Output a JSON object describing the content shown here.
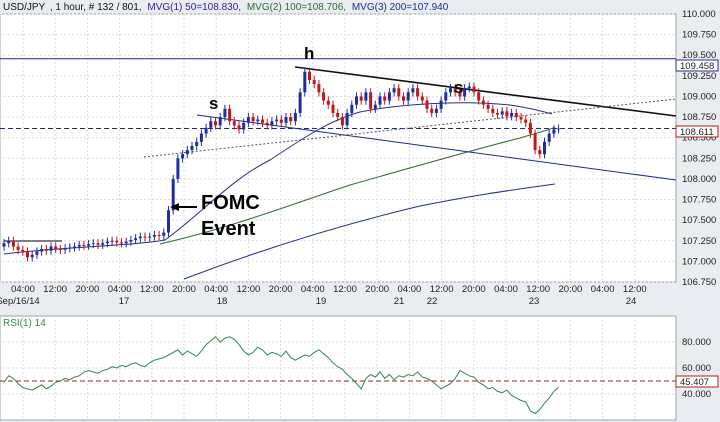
{
  "header": {
    "symbol": "USD/JPY",
    "timeframe": ", 1 hour, # 132 / 801,",
    "ma1_label": "MVG(1) 50=108.830,",
    "ma2_label": "MVG(2) 100=108.706,",
    "ma3_label": "MVG(3) 200=107.940",
    "rsi_label": "RSI(1) 14=45.407"
  },
  "colors": {
    "ma1": "#2a2a8c",
    "ma2": "#2f6b2f",
    "ma3": "#1f2f8a",
    "up_candle": "#1f2f9a",
    "down_candle": "#c01818",
    "price_line": "#1a2a8a",
    "rsi_line": "#2d8a4e",
    "rsi_mid": "#a02020"
  },
  "chart_data": [
    {
      "type": "candlestick",
      "panel": "price",
      "symbol": "USD/JPY",
      "interval": "1 hour",
      "ylim": [
        106.75,
        110.0
      ],
      "y_ticks": [
        "110.000",
        "109.750",
        "109.500",
        "109.250",
        "109.000",
        "108.750",
        "108.500",
        "108.250",
        "108.000",
        "107.750",
        "107.500",
        "107.250",
        "107.000",
        "106.750"
      ],
      "x_ticks": [
        "04:00",
        "12:00",
        "20:00",
        "04:00",
        "12:00",
        "20:00",
        "04:00",
        "12:00",
        "20:00",
        "04:00",
        "12:00",
        "20:00",
        "04:00",
        "12:00",
        "20:00",
        "04:00",
        "12:00",
        "20:00",
        "04:00",
        "12:00"
      ],
      "date_labels": [
        "Sep/16/14",
        "17",
        "18",
        "19",
        "21",
        "22",
        "23",
        "24"
      ],
      "current_price": 108.611,
      "current_price_label": "108.611",
      "resistance_level": 109.458,
      "resistance_label": "109.458",
      "moving_averages": [
        {
          "name": "MVG(1) 50",
          "value": 108.83
        },
        {
          "name": "MVG(2) 100",
          "value": 108.706
        },
        {
          "name": "MVG(3) 200",
          "value": 107.94
        }
      ],
      "annotations": [
        "h",
        "s",
        "s",
        "FOMC",
        "Event"
      ],
      "closes": [
        107.22,
        107.25,
        107.18,
        107.14,
        107.12,
        107.05,
        107.08,
        107.12,
        107.15,
        107.13,
        107.18,
        107.15,
        107.14,
        107.16,
        107.17,
        107.18,
        107.2,
        107.19,
        107.21,
        107.22,
        107.2,
        107.22,
        107.24,
        107.25,
        107.23,
        107.22,
        107.24,
        107.26,
        107.28,
        107.3,
        107.29,
        107.3,
        107.32,
        107.31,
        107.35,
        107.62,
        108.0,
        108.25,
        108.3,
        108.35,
        108.4,
        108.45,
        108.55,
        108.62,
        108.7,
        108.65,
        108.75,
        108.85,
        108.7,
        108.65,
        108.6,
        108.68,
        108.75,
        108.7,
        108.72,
        108.68,
        108.65,
        108.7,
        108.72,
        108.68,
        108.75,
        108.7,
        108.8,
        109.05,
        109.3,
        109.2,
        109.15,
        109.05,
        108.95,
        108.9,
        108.8,
        108.75,
        108.65,
        108.8,
        108.9,
        109.0,
        108.95,
        109.05,
        108.85,
        108.9,
        109.0,
        108.95,
        109.05,
        109.1,
        109.0,
        108.95,
        109.05,
        109.1,
        109.0,
        108.95,
        108.85,
        108.8,
        108.85,
        108.95,
        109.05,
        109.1,
        109.05,
        109.0,
        109.1,
        109.12,
        109.05,
        108.95,
        108.9,
        108.85,
        108.8,
        108.78,
        108.82,
        108.76,
        108.8,
        108.75,
        108.72,
        108.68,
        108.55,
        108.35,
        108.3,
        108.45,
        108.55,
        108.6,
        108.611
      ],
      "rsi": {
        "name": "RSI(1) 14",
        "value": 45.407,
        "value_label": "45.407",
        "ylim": [
          20,
          100
        ],
        "y_ticks": [
          "80.000",
          "60.000",
          "40.000"
        ],
        "levels": [
          50
        ],
        "values": [
          49,
          54,
          52,
          48,
          45,
          44,
          43,
          45,
          47,
          44,
          46,
          49,
          50,
          52,
          51,
          53,
          54,
          57,
          58,
          57,
          56,
          58,
          59,
          61,
          60,
          62,
          61,
          63,
          64,
          62,
          61,
          64,
          66,
          67,
          68,
          70,
          72,
          74,
          70,
          73,
          71,
          69,
          73,
          78,
          81,
          84,
          80,
          83,
          84,
          82,
          78,
          73,
          70,
          72,
          76,
          74,
          70,
          72,
          71,
          69,
          73,
          68,
          66,
          68,
          70,
          69,
          72,
          74,
          71,
          68,
          64,
          61,
          59,
          55,
          52,
          48,
          44,
          52,
          55,
          53,
          57,
          52,
          55,
          51,
          54,
          53,
          55,
          54,
          57,
          53,
          52,
          50,
          47,
          44,
          46,
          48,
          52,
          58,
          56,
          54,
          53,
          49,
          47,
          44,
          45,
          42,
          41,
          43,
          39,
          37,
          35,
          34,
          27,
          25,
          28,
          33,
          37,
          42,
          45.407
        ]
      }
    }
  ]
}
